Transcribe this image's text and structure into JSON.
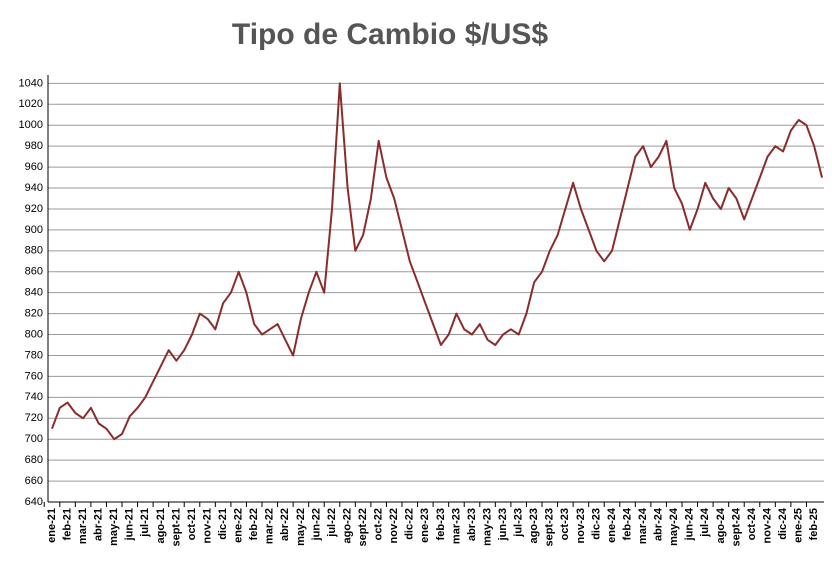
{
  "chart_data": {
    "type": "line",
    "title": "Tipo de Cambio $/US$",
    "categories": [
      "ene-21",
      null,
      "feb-21",
      null,
      "mar-21",
      null,
      "abr-21",
      null,
      "may-21",
      null,
      "jun-21",
      null,
      "jul-21",
      null,
      "ago-21",
      null,
      "sept-21",
      null,
      "oct-21",
      null,
      "nov-21",
      null,
      "dic-21",
      null,
      "ene-22",
      null,
      "feb-22",
      null,
      "mar-22",
      null,
      "abr-22",
      null,
      "may-22",
      null,
      "jun-22",
      null,
      "jul-22",
      null,
      "ago-22",
      null,
      "sept-22",
      null,
      "oct-22",
      null,
      "nov-22",
      null,
      "dic-22",
      null,
      "ene-23",
      null,
      "feb-23",
      null,
      "mar-23",
      null,
      "abr-23",
      null,
      "may-23",
      null,
      "jun-23",
      null,
      "jul-23",
      null,
      "ago-23",
      null,
      "sept-23",
      null,
      "oct-23",
      null,
      "nov-23",
      null,
      "dic-23",
      null,
      "ene-24",
      null,
      "feb-24",
      null,
      "mar-24",
      null,
      "abr-24",
      null,
      "may-24",
      null,
      "jun-24",
      null,
      "jul-24",
      null,
      "ago-24",
      null,
      "sept-24",
      null,
      "oct-24",
      null,
      "nov-24",
      null,
      "dic-24",
      null,
      "ene-25",
      null,
      "feb-25",
      null
    ],
    "values": [
      710,
      730,
      735,
      725,
      720,
      730,
      715,
      710,
      700,
      705,
      722,
      730,
      740,
      755,
      770,
      785,
      775,
      785,
      800,
      820,
      815,
      805,
      830,
      840,
      860,
      840,
      810,
      800,
      805,
      810,
      795,
      780,
      815,
      840,
      860,
      840,
      920,
      1040,
      940,
      880,
      895,
      930,
      985,
      950,
      930,
      900,
      870,
      850,
      830,
      810,
      790,
      800,
      820,
      805,
      800,
      810,
      795,
      790,
      800,
      805,
      800,
      820,
      850,
      860,
      880,
      895,
      920,
      945,
      920,
      900,
      880,
      870,
      880,
      910,
      940,
      970,
      980,
      960,
      970,
      985,
      940,
      925,
      900,
      920,
      945,
      930,
      920,
      940,
      930,
      910,
      930,
      950,
      970,
      980,
      975,
      995,
      1005,
      1000,
      980,
      950
    ],
    "color": "#8b2c2c",
    "ylim": [
      640,
      1048
    ],
    "yticks": [
      640,
      660,
      680,
      700,
      720,
      740,
      760,
      780,
      800,
      820,
      840,
      860,
      880,
      900,
      920,
      940,
      960,
      980,
      1000,
      1020,
      1040
    ],
    "grid": true
  }
}
